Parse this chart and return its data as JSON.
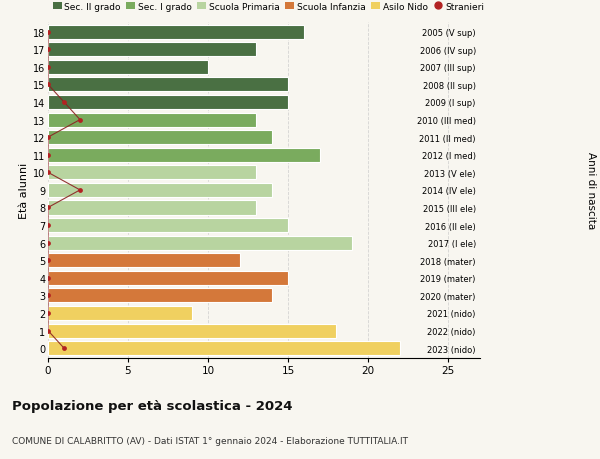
{
  "ages": [
    18,
    17,
    16,
    15,
    14,
    13,
    12,
    11,
    10,
    9,
    8,
    7,
    6,
    5,
    4,
    3,
    2,
    1,
    0
  ],
  "right_labels": [
    "2005 (V sup)",
    "2006 (IV sup)",
    "2007 (III sup)",
    "2008 (II sup)",
    "2009 (I sup)",
    "2010 (III med)",
    "2011 (II med)",
    "2012 (I med)",
    "2013 (V ele)",
    "2014 (IV ele)",
    "2015 (III ele)",
    "2016 (II ele)",
    "2017 (I ele)",
    "2018 (mater)",
    "2019 (mater)",
    "2020 (mater)",
    "2021 (nido)",
    "2022 (nido)",
    "2023 (nido)"
  ],
  "bar_values": [
    16,
    13,
    10,
    15,
    15,
    13,
    14,
    17,
    13,
    14,
    13,
    15,
    19,
    12,
    15,
    14,
    9,
    18,
    22
  ],
  "bar_colors": [
    "#4a7043",
    "#4a7043",
    "#4a7043",
    "#4a7043",
    "#4a7043",
    "#7aab5e",
    "#7aab5e",
    "#7aab5e",
    "#b8d4a0",
    "#b8d4a0",
    "#b8d4a0",
    "#b8d4a0",
    "#b8d4a0",
    "#d4783a",
    "#d4783a",
    "#d4783a",
    "#f0d060",
    "#f0d060",
    "#f0d060"
  ],
  "stranieri_values": [
    0,
    0,
    0,
    0,
    1,
    2,
    0,
    0,
    0,
    2,
    0,
    0,
    0,
    0,
    0,
    0,
    0,
    0,
    1
  ],
  "legend_labels": [
    "Sec. II grado",
    "Sec. I grado",
    "Scuola Primaria",
    "Scuola Infanzia",
    "Asilo Nido",
    "Stranieri"
  ],
  "legend_colors": [
    "#4a7043",
    "#7aab5e",
    "#b8d4a0",
    "#d4783a",
    "#f0d060",
    "#b22222"
  ],
  "ylabel_left": "Età alunni",
  "ylabel_right": "Anni di nascita",
  "title": "Popolazione per età scolastica - 2024",
  "subtitle": "COMUNE DI CALABRITTO (AV) - Dati ISTAT 1° gennaio 2024 - Elaborazione TUTTITALIA.IT",
  "xlim": [
    0,
    27
  ],
  "bar_height": 0.8,
  "background_color": "#f8f6f0",
  "grid_color": "#cccccc",
  "stranieri_color": "#b22222",
  "stranieri_line_color": "#8b2020"
}
